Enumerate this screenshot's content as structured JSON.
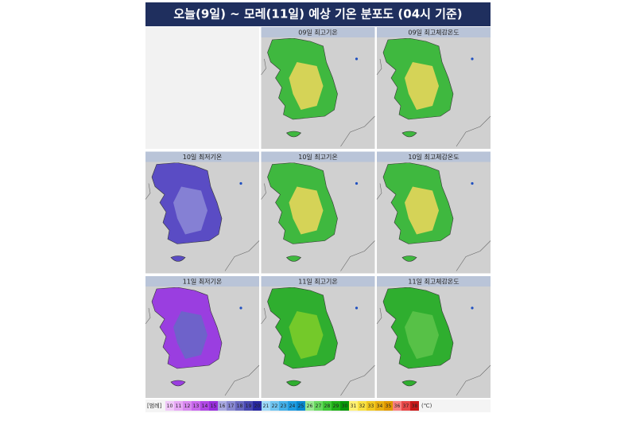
{
  "title": "오늘(9일) ~ 모레(11일) 예상 기온 분포도 (04시 기준)",
  "panels": [
    {
      "label": "09일 최고기온",
      "base": "#3fb83f",
      "accent": "#e6d65a"
    },
    {
      "label": "09일 최고체감온도",
      "base": "#3fb83f",
      "accent": "#e6d65a"
    },
    {
      "label": "10일 최저기온",
      "base": "#5a4cc4",
      "accent": "#8a86d6"
    },
    {
      "label": "10일 최고기온",
      "base": "#3fb83f",
      "accent": "#e6d65a"
    },
    {
      "label": "10일 최고체감온도",
      "base": "#3fb83f",
      "accent": "#e6d65a"
    },
    {
      "label": "11일 최저기온",
      "base": "#9a3ee0",
      "accent": "#6a66c8"
    },
    {
      "label": "11일 최고기온",
      "base": "#2fae2f",
      "accent": "#7ccc2a"
    },
    {
      "label": "11일 최고체감온도",
      "base": "#2fae2f",
      "accent": "#5cc44a"
    }
  ],
  "legend": {
    "label": "[범례]",
    "unit": "(℃)",
    "items": [
      {
        "value": "10",
        "color": "#f0c8f8"
      },
      {
        "value": "11",
        "color": "#e6a8f4"
      },
      {
        "value": "12",
        "color": "#d888f0"
      },
      {
        "value": "13",
        "color": "#c868ec"
      },
      {
        "value": "14",
        "color": "#b048e4"
      },
      {
        "value": "15",
        "color": "#9830dc"
      },
      {
        "value": "16",
        "color": "#a8a8e0"
      },
      {
        "value": "17",
        "color": "#8888d0"
      },
      {
        "value": "18",
        "color": "#6868c0"
      },
      {
        "value": "19",
        "color": "#4848b0"
      },
      {
        "value": "20",
        "color": "#2828a0"
      },
      {
        "value": "21",
        "color": "#9cd8f8"
      },
      {
        "value": "22",
        "color": "#70c4f0"
      },
      {
        "value": "23",
        "color": "#44b0e8"
      },
      {
        "value": "24",
        "color": "#209ce0"
      },
      {
        "value": "25",
        "color": "#0888d0"
      },
      {
        "value": "26",
        "color": "#98e890"
      },
      {
        "value": "27",
        "color": "#68d860"
      },
      {
        "value": "28",
        "color": "#40c838"
      },
      {
        "value": "29",
        "color": "#20b018"
      },
      {
        "value": "30",
        "color": "#089808"
      },
      {
        "value": "31",
        "color": "#fff070"
      },
      {
        "value": "32",
        "color": "#f8e040"
      },
      {
        "value": "33",
        "color": "#f0c820"
      },
      {
        "value": "34",
        "color": "#e8b010"
      },
      {
        "value": "35",
        "color": "#e09800"
      },
      {
        "value": "36",
        "color": "#f88080"
      },
      {
        "value": "37",
        "color": "#e84848"
      },
      {
        "value": "38",
        "color": "#c81818"
      }
    ]
  }
}
